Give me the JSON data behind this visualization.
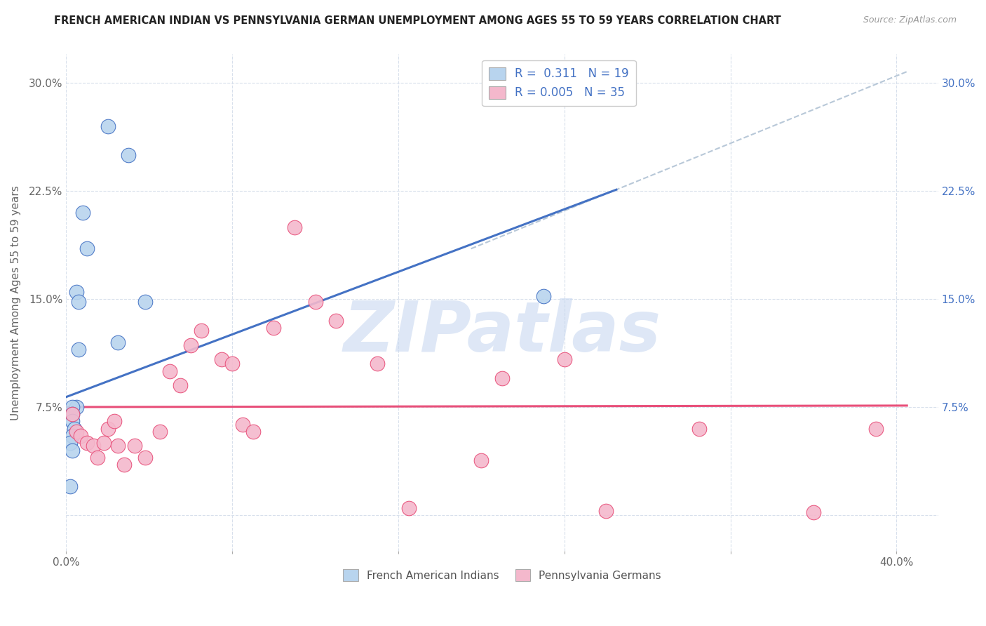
{
  "title": "FRENCH AMERICAN INDIAN VS PENNSYLVANIA GERMAN UNEMPLOYMENT AMONG AGES 55 TO 59 YEARS CORRELATION CHART",
  "source": "Source: ZipAtlas.com",
  "ylabel": "Unemployment Among Ages 55 to 59 years",
  "y_ticks": [
    0.0,
    0.075,
    0.15,
    0.225,
    0.3
  ],
  "y_tick_labels_left": [
    "",
    "7.5%",
    "15.0%",
    "22.5%",
    "30.0%"
  ],
  "y_tick_labels_right": [
    "",
    "7.5%",
    "15.0%",
    "22.5%",
    "30.0%"
  ],
  "x_ticks": [
    0.0,
    0.08,
    0.16,
    0.24,
    0.32,
    0.4
  ],
  "x_tick_labels": [
    "0.0%",
    "",
    "",
    "",
    "",
    "40.0%"
  ],
  "xlim": [
    0.0,
    0.42
  ],
  "ylim": [
    -0.025,
    0.32
  ],
  "legend_label1": "French American Indians",
  "legend_label2": "Pennsylvania Germans",
  "color_blue": "#b8d4ee",
  "color_pink": "#f4b8cc",
  "line_blue": "#4472c4",
  "line_pink": "#e8507a",
  "line_dashed_color": "#b8c8d8",
  "blue_scatter_x": [
    0.02,
    0.03,
    0.008,
    0.01,
    0.005,
    0.006,
    0.006,
    0.005,
    0.003,
    0.003,
    0.003,
    0.004,
    0.003,
    0.002,
    0.003,
    0.002,
    0.025,
    0.038,
    0.23
  ],
  "blue_scatter_y": [
    0.27,
    0.25,
    0.21,
    0.185,
    0.155,
    0.148,
    0.115,
    0.075,
    0.075,
    0.07,
    0.065,
    0.06,
    0.055,
    0.05,
    0.045,
    0.02,
    0.12,
    0.148,
    0.152
  ],
  "pink_scatter_x": [
    0.003,
    0.005,
    0.007,
    0.01,
    0.013,
    0.015,
    0.018,
    0.02,
    0.023,
    0.025,
    0.028,
    0.033,
    0.038,
    0.045,
    0.05,
    0.055,
    0.06,
    0.065,
    0.075,
    0.08,
    0.085,
    0.09,
    0.1,
    0.11,
    0.12,
    0.13,
    0.15,
    0.165,
    0.2,
    0.21,
    0.24,
    0.26,
    0.305,
    0.36,
    0.39
  ],
  "pink_scatter_y": [
    0.07,
    0.058,
    0.055,
    0.05,
    0.048,
    0.04,
    0.05,
    0.06,
    0.065,
    0.048,
    0.035,
    0.048,
    0.04,
    0.058,
    0.1,
    0.09,
    0.118,
    0.128,
    0.108,
    0.105,
    0.063,
    0.058,
    0.13,
    0.2,
    0.148,
    0.135,
    0.105,
    0.005,
    0.038,
    0.095,
    0.108,
    0.003,
    0.06,
    0.002,
    0.06
  ],
  "blue_line_x": [
    0.0,
    0.265
  ],
  "blue_line_y": [
    0.082,
    0.226
  ],
  "dashed_line_x": [
    0.195,
    0.405
  ],
  "dashed_line_y": [
    0.185,
    0.308
  ],
  "pink_line_x": [
    0.0,
    0.405
  ],
  "pink_line_y": [
    0.075,
    0.076
  ],
  "background_color": "#ffffff",
  "grid_color": "#d8e0ec",
  "watermark_text": "ZIPatlas",
  "watermark_color": "#c8d8f0",
  "watermark_fontsize": 72
}
